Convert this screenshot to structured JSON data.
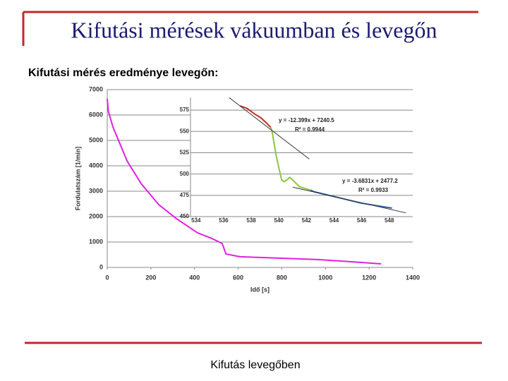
{
  "slide": {
    "title": "Kifutási mérések vákuumban és levegőn",
    "subtitle": "Kifutási mérés eredménye levegőn:",
    "caption": "Kifutás levegőben"
  },
  "chart_data": [
    {
      "type": "line",
      "xlabel": "Idő [s]",
      "ylabel": "Fordulatszám [1/min]",
      "xlim": [
        0,
        1400
      ],
      "ylim": [
        0,
        7000
      ],
      "xticks": [
        0,
        200,
        400,
        600,
        800,
        1000,
        1200,
        1400
      ],
      "yticks": [
        0,
        1000,
        2000,
        3000,
        4000,
        5000,
        6000,
        7000
      ],
      "grid": true,
      "series": [
        {
          "color": "#e020e0",
          "x": [
            0,
            5,
            26,
            91,
            155,
            236,
            317,
            414,
            479,
            527,
            544,
            608,
            802,
            965,
            1126,
            1255
          ],
          "values": [
            6640,
            6150,
            5530,
            4190,
            3300,
            2470,
            1920,
            1360,
            1140,
            940,
            530,
            420,
            360,
            310,
            220,
            140
          ]
        }
      ]
    },
    {
      "type": "line",
      "xlim": [
        533.6,
        549.7
      ],
      "ylim": [
        450,
        590
      ],
      "xticks": [
        534,
        536,
        538,
        540,
        542,
        544,
        546,
        548
      ],
      "yticks": [
        450,
        475,
        500,
        525,
        550,
        575
      ],
      "grid": true,
      "series": [
        {
          "color": "#c0302a",
          "x": [
            537.2,
            537.7,
            538.2,
            538.7,
            539.1,
            539.4
          ],
          "values": [
            580,
            577,
            571,
            566,
            560,
            555
          ]
        },
        {
          "color": "#8cc63f",
          "x": [
            539.4,
            539.5,
            539.8,
            540.2,
            540.4,
            540.8,
            541.0,
            541.5,
            542.3
          ],
          "values": [
            555,
            551,
            522,
            493,
            491,
            496,
            493,
            485,
            481
          ]
        },
        {
          "color": "#2e5fb0",
          "x": [
            542.3,
            542.6,
            544.4,
            545.9,
            547.4,
            548.2
          ],
          "values": [
            481,
            479,
            472,
            466,
            462,
            460
          ]
        },
        {
          "color": "#333333",
          "trend": true,
          "x": [
            536.4,
            542.2
          ],
          "values": [
            589.7,
            517.6
          ]
        },
        {
          "color": "#333333",
          "trend": true,
          "x": [
            541.0,
            549.2
          ],
          "values": [
            484.6,
            454.4
          ]
        }
      ],
      "annotations": [
        "y = -12.399x + 7240.5",
        "R² = 0.9944",
        "y = -3.6831x + 2477.2",
        "R² = 0.9933"
      ]
    }
  ]
}
